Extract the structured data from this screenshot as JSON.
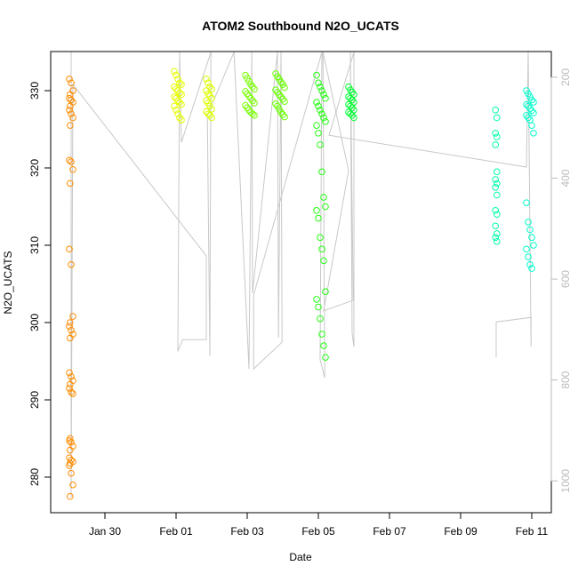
{
  "chart_data": {
    "type": "scatter",
    "title": "ATOM2 Southbound N2O_UCATS",
    "x_label": "Date",
    "y_label": "N2O_UCATS",
    "xlim": [
      28.475,
      42.55
    ],
    "ylim": [
      275.4,
      335.06
    ],
    "y2lim": [
      1063,
      149
    ],
    "xticks": [
      {
        "value": 30,
        "label": "Jan 30"
      },
      {
        "value": 32,
        "label": "Feb 01"
      },
      {
        "value": 34,
        "label": "Feb 03"
      },
      {
        "value": 36,
        "label": "Feb 05"
      },
      {
        "value": 38,
        "label": "Feb 07"
      },
      {
        "value": 40,
        "label": "Feb 09"
      },
      {
        "value": 42,
        "label": "Feb 11"
      }
    ],
    "yticks": [
      280,
      290,
      300,
      310,
      320,
      330
    ],
    "y2ticks": [
      200,
      400,
      600,
      800,
      1000
    ],
    "y2_color": "#bbbbbb",
    "series": [
      {
        "color": "#ff8c00",
        "x": [
          29.0,
          29.05,
          29.1,
          29.02,
          29.0,
          29.05,
          29.1,
          29.02,
          29.0,
          29.05,
          29.1,
          29.02,
          29.0,
          29.05,
          29.1,
          29.02,
          29.0,
          29.05,
          29.1,
          29.02,
          29.0,
          29.05,
          29.1,
          29.02,
          29.0,
          29.05,
          29.1,
          29.02,
          29.0,
          29.05,
          29.1,
          29.02,
          29.0,
          29.05,
          29.1,
          29.02,
          29.0,
          29.05,
          29.1,
          29.02,
          29.0,
          29.05,
          29.1,
          29.02
        ],
        "values": [
          331.5,
          331,
          330,
          329.5,
          329,
          328.8,
          328.5,
          328,
          327.5,
          327,
          326.5,
          325.5,
          321,
          320.8,
          319.8,
          318,
          309.5,
          307.5,
          300.8,
          300,
          299.5,
          299,
          298.5,
          298,
          293.5,
          293,
          292.5,
          292,
          291.5,
          291,
          290.8,
          285,
          284.7,
          284.5,
          284,
          283.5,
          282.5,
          282.2,
          282,
          281.8,
          281.5,
          280.5,
          279,
          277.5
        ]
      },
      {
        "color": "#e6ff00",
        "x": [
          31.95,
          32.0,
          32.05,
          32.1,
          32.15,
          31.95,
          32.0,
          32.05,
          32.1,
          32.15,
          31.95,
          32.0,
          32.05,
          32.1,
          32.15,
          31.95,
          32.0,
          32.05,
          32.1,
          32.15
        ],
        "values": [
          332.5,
          332,
          331.5,
          331,
          330.8,
          330.5,
          330.2,
          330,
          329.7,
          329.5,
          329.2,
          329,
          328.7,
          328.5,
          328.2,
          328,
          327.5,
          327,
          326.5,
          326.2
        ]
      },
      {
        "color": "#dcff00",
        "x": [
          32.85,
          32.9,
          32.95,
          33.0,
          32.85,
          32.9,
          32.95,
          33.0,
          32.85,
          32.9,
          32.95,
          33.0,
          32.85,
          32.9,
          32.95,
          33.0
        ],
        "values": [
          331.5,
          331,
          330.5,
          330.2,
          330,
          329.6,
          329.3,
          329,
          328.7,
          328.4,
          328,
          327.6,
          327.3,
          327,
          326.8,
          326.5
        ]
      },
      {
        "color": "#77ff00",
        "x": [
          33.95,
          34.0,
          34.05,
          34.1,
          34.15,
          34.2,
          33.95,
          34.0,
          34.05,
          34.1,
          34.15,
          34.2,
          33.95,
          34.0,
          34.05,
          34.1,
          34.15,
          34.2
        ],
        "values": [
          332,
          331.6,
          331.2,
          330.8,
          330.5,
          330.2,
          329.9,
          329.6,
          329.3,
          329,
          328.7,
          328.4,
          328.1,
          327.8,
          327.5,
          327.2,
          327,
          326.8
        ]
      },
      {
        "color": "#66ff00",
        "x": [
          34.8,
          34.85,
          34.9,
          34.95,
          35.0,
          35.05,
          34.8,
          34.85,
          34.9,
          34.95,
          35.0,
          35.05,
          34.8,
          34.85,
          34.9,
          34.95,
          35.0,
          35.05
        ],
        "values": [
          332.2,
          331.8,
          331.5,
          331.1,
          330.8,
          330.4,
          330.1,
          329.8,
          329.5,
          329.2,
          328.9,
          328.6,
          328.3,
          328,
          327.6,
          327.2,
          326.9,
          326.6
        ]
      },
      {
        "color": "#22ff11",
        "x": [
          35.95,
          36.0,
          36.05,
          36.1,
          36.15,
          36.2,
          35.95,
          36.0,
          36.05,
          36.1,
          36.15,
          36.2,
          35.95,
          36.0,
          36.05,
          36.1,
          36.15,
          36.2,
          35.95,
          36.0,
          36.05,
          36.1,
          36.15,
          36.2,
          35.95,
          36.0,
          36.05,
          36.1,
          36.15,
          36.2
        ],
        "values": [
          332,
          331,
          330.5,
          330,
          329.5,
          329,
          328.5,
          328,
          327.5,
          327,
          326.5,
          326,
          325.5,
          324.5,
          323,
          319.5,
          316.2,
          315,
          314.5,
          313.5,
          311,
          309.5,
          308,
          304,
          303,
          302,
          300.5,
          298.5,
          297,
          295.5
        ]
      },
      {
        "color": "#00ff33",
        "x": [
          36.85,
          36.9,
          36.95,
          37.0,
          36.85,
          36.9,
          36.95,
          37.0,
          36.85,
          36.9,
          36.95,
          37.0,
          36.85,
          36.9,
          36.95,
          37.0
        ],
        "values": [
          330.5,
          330.1,
          329.8,
          329.5,
          329.2,
          329,
          328.8,
          328.5,
          328.2,
          328,
          327.8,
          327.5,
          327.2,
          327,
          326.8,
          326.5
        ]
      },
      {
        "color": "#00ffaa",
        "x": [
          40.98,
          41.02,
          40.98,
          41.02,
          40.98,
          41.02,
          40.98,
          41.02,
          40.98,
          41.02,
          40.98,
          41.02,
          40.98,
          41.02,
          40.98,
          41.02
        ],
        "values": [
          327.5,
          326.5,
          324.5,
          324,
          323,
          319.5,
          318.5,
          318,
          317.5,
          316.5,
          314.5,
          314,
          312.5,
          311.5,
          311,
          310.5
        ]
      },
      {
        "color": "#00ffcc",
        "x": [
          41.85,
          41.9,
          41.95,
          42.0,
          42.05,
          41.85,
          41.9,
          41.95,
          42.0,
          42.05,
          41.85,
          41.9,
          41.95,
          42.0,
          42.05,
          41.85,
          41.9,
          41.95,
          42.0,
          42.05,
          41.85,
          41.9,
          41.95,
          42.0
        ],
        "values": [
          330,
          329.6,
          329.2,
          328.8,
          328.5,
          328.2,
          328,
          327.7,
          327.4,
          327.1,
          326.8,
          326.5,
          326.2,
          325.5,
          324.5,
          315.5,
          313,
          312,
          311,
          310,
          309.5,
          308.5,
          307.5,
          307
        ]
      },
      {
        "type": "line",
        "axis": "y2",
        "color": "#c8c8c8",
        "x": [
          29.05,
          29.05,
          29.1,
          32.85,
          32.85,
          32.18,
          32.05,
          32.1,
          32.15,
          32.98,
          32.95,
          32.88,
          33.63,
          34.05,
          34.13,
          34.15,
          34.85,
          34.88,
          34.95,
          34.98,
          34.18,
          34.18,
          36.1,
          36.05,
          36.18,
          36.13,
          36.85,
          36.15,
          36.98,
          36.9,
          36.95,
          37.0,
          37.0,
          36.3,
          41.85,
          41.9,
          41.98,
          41.98,
          41.0,
          41.0
        ],
        "values": [
          150,
          1033,
          214,
          554,
          720,
          720,
          743,
          150,
          329,
          150,
          752,
          276,
          150,
          778,
          150,
          628,
          150,
          716,
          150,
          725,
          778,
          632,
          150,
          760,
          796,
          150,
          385,
          663,
          642,
          150,
          707,
          734,
          150,
          315,
          378,
          150,
          734,
          676,
          685,
          755
        ]
      }
    ]
  }
}
